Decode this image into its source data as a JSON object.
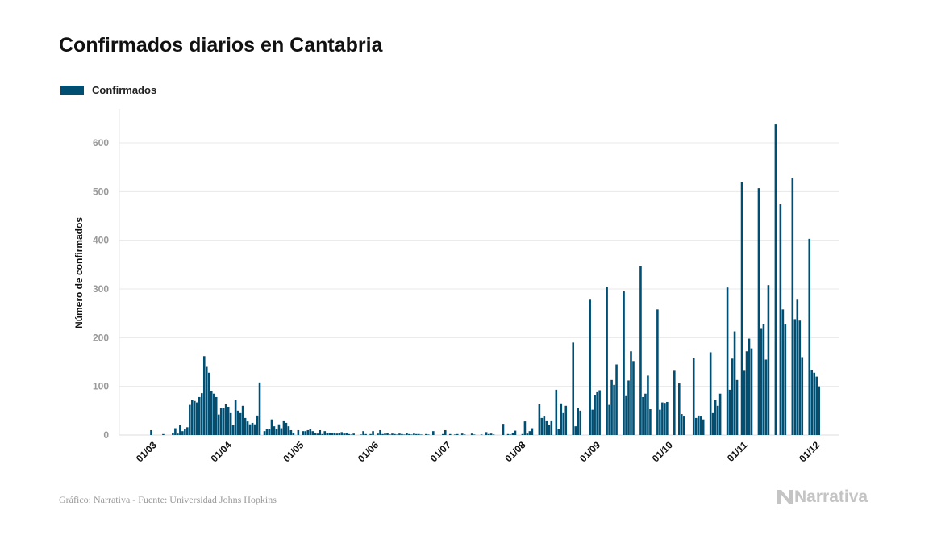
{
  "chart_data": {
    "type": "bar",
    "title": "Confirmados diarios en Cantabria",
    "ylabel": "Número de confirmados",
    "xlabel": "",
    "ylim": [
      0,
      670
    ],
    "yticks": [
      0,
      100,
      200,
      300,
      400,
      500,
      600
    ],
    "xticks": [
      "01/03",
      "01/04",
      "01/05",
      "01/06",
      "01/07",
      "01/08",
      "01/09",
      "01/10",
      "01/11",
      "01/12"
    ],
    "grid": true,
    "legend_placement": "top-left",
    "x_start": "26/02",
    "x_end": "30/11",
    "x_step": "1 day",
    "series": [
      {
        "name": "Confirmados",
        "color": "#004f73",
        "values": [
          0,
          10,
          0,
          0,
          0,
          0,
          2,
          0,
          0,
          0,
          5,
          14,
          3,
          20,
          8,
          12,
          16,
          62,
          72,
          70,
          67,
          78,
          86,
          162,
          140,
          128,
          90,
          85,
          78,
          42,
          56,
          55,
          63,
          58,
          45,
          20,
          72,
          50,
          45,
          60,
          35,
          28,
          22,
          25,
          22,
          40,
          108,
          0,
          8,
          12,
          12,
          32,
          18,
          12,
          22,
          14,
          30,
          25,
          18,
          10,
          5,
          0,
          10,
          0,
          8,
          8,
          10,
          12,
          8,
          4,
          3,
          10,
          2,
          8,
          4,
          5,
          4,
          5,
          3,
          4,
          6,
          3,
          5,
          2,
          1,
          3,
          0,
          0,
          1,
          8,
          2,
          0,
          2,
          8,
          0,
          3,
          10,
          2,
          3,
          4,
          1,
          3,
          2,
          1,
          3,
          2,
          1,
          4,
          2,
          1,
          3,
          2,
          2,
          1,
          0,
          2,
          1,
          0,
          8,
          0,
          0,
          0,
          2,
          10,
          0,
          2,
          0,
          1,
          2,
          0,
          3,
          1,
          0,
          0,
          3,
          1,
          0,
          0,
          1,
          0,
          6,
          2,
          3,
          1,
          0,
          0,
          0,
          23,
          0,
          2,
          1,
          5,
          9,
          0,
          0,
          2,
          28,
          3,
          8,
          14,
          0,
          0,
          63,
          35,
          38,
          30,
          20,
          30,
          0,
          93,
          12,
          65,
          45,
          60,
          0,
          0,
          190,
          18,
          55,
          50,
          0,
          0,
          0,
          278,
          52,
          82,
          88,
          92,
          0,
          0,
          305,
          62,
          113,
          103,
          145,
          0,
          0,
          295,
          80,
          112,
          172,
          152,
          0,
          0,
          348,
          78,
          85,
          122,
          53,
          0,
          0,
          258,
          52,
          67,
          66,
          68,
          0,
          0,
          132,
          0,
          106,
          43,
          38,
          0,
          0,
          0,
          158,
          35,
          40,
          38,
          32,
          0,
          0,
          170,
          45,
          72,
          60,
          85,
          0,
          0,
          303,
          93,
          157,
          213,
          113,
          0,
          519,
          132,
          172,
          198,
          178,
          0,
          0,
          507,
          218,
          228,
          155,
          308,
          0,
          0,
          638,
          0,
          474,
          258,
          227,
          0,
          0,
          528,
          238,
          278,
          235,
          160,
          0,
          0,
          403,
          133,
          128,
          120,
          100
        ]
      }
    ]
  },
  "footer": "Gráfico: Narrativa - Fuente: Universidad Johns Hopkins",
  "logo_text": "Narrativa",
  "colors": {
    "bar": "#004f73",
    "grid": "#e8e8e8",
    "tick_label": "#999999",
    "logo": "#c4c4c4"
  }
}
